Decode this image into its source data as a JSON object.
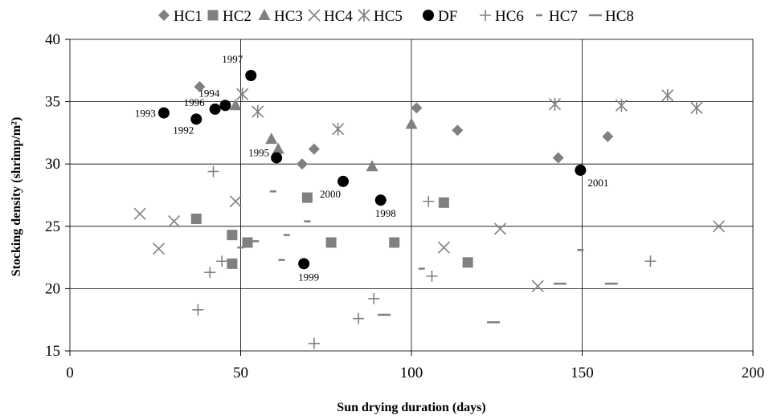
{
  "chart_data": {
    "type": "scatter",
    "xlabel": "Sun drying duration (days)",
    "ylabel": "Stocking density (shrimp/m²)",
    "xlim": [
      0,
      200
    ],
    "ylim": [
      15,
      40
    ],
    "x_ticks": [
      0,
      50,
      100,
      150,
      200
    ],
    "y_ticks": [
      15,
      20,
      25,
      30,
      35,
      40
    ],
    "grid": true,
    "grid_lines": "major gridlines at x=50,100,150 and y=20,25,30,35",
    "legend_position": "top",
    "series": [
      {
        "name": "HC1",
        "marker": "diamond",
        "color": "#808080",
        "points": [
          [
            38,
            36.2
          ],
          [
            68,
            30.0
          ],
          [
            71.5,
            31.2
          ],
          [
            101.5,
            34.5
          ],
          [
            113.5,
            32.7
          ],
          [
            143,
            30.5
          ],
          [
            157.5,
            32.2
          ]
        ]
      },
      {
        "name": "HC2",
        "marker": "square",
        "color": "#808080",
        "points": [
          [
            37,
            25.6
          ],
          [
            47.5,
            24.3
          ],
          [
            47.5,
            22.0
          ],
          [
            52,
            23.7
          ],
          [
            69.5,
            27.3
          ],
          [
            76.5,
            23.7
          ],
          [
            95,
            23.7
          ],
          [
            109.5,
            26.9
          ],
          [
            116.5,
            22.1
          ]
        ]
      },
      {
        "name": "HC3",
        "marker": "triangle",
        "color": "#808080",
        "points": [
          [
            48.5,
            34.7
          ],
          [
            59,
            32.0
          ],
          [
            61,
            31.2
          ],
          [
            88.5,
            29.8
          ],
          [
            100,
            33.2
          ]
        ]
      },
      {
        "name": "HC4",
        "marker": "x",
        "color": "#808080",
        "points": [
          [
            20.5,
            26.0
          ],
          [
            26,
            23.2
          ],
          [
            30.5,
            25.4
          ],
          [
            48.5,
            27.0
          ],
          [
            109.5,
            23.3
          ],
          [
            126,
            24.8
          ],
          [
            137,
            20.2
          ],
          [
            190,
            25.0
          ]
        ]
      },
      {
        "name": "HC5",
        "marker": "star",
        "color": "#808080",
        "points": [
          [
            50.5,
            35.6
          ],
          [
            55,
            34.2
          ],
          [
            78.5,
            32.8
          ],
          [
            142,
            34.8
          ],
          [
            161.5,
            34.7
          ],
          [
            175,
            35.5
          ],
          [
            183.5,
            34.5
          ]
        ]
      },
      {
        "name": "DF",
        "marker": "circle",
        "color": "#000000",
        "points": [
          [
            27.5,
            34.1
          ],
          [
            37,
            33.6
          ],
          [
            42.5,
            34.4
          ],
          [
            45.5,
            34.7
          ],
          [
            53,
            37.1
          ],
          [
            60.5,
            30.5
          ],
          [
            80,
            28.6
          ],
          [
            91,
            27.1
          ],
          [
            68.5,
            22.0
          ],
          [
            149.5,
            29.5
          ]
        ],
        "point_labels": [
          "1993",
          "1992",
          "1996",
          "1994",
          "1997",
          "1995",
          "2000",
          "1998",
          "1999",
          "2001"
        ]
      },
      {
        "name": "HC6",
        "marker": "plus",
        "color": "#808080",
        "points": [
          [
            37.5,
            18.3
          ],
          [
            41,
            21.3
          ],
          [
            42,
            29.4
          ],
          [
            44.5,
            22.2
          ],
          [
            71.5,
            15.6
          ],
          [
            84.5,
            17.6
          ],
          [
            89,
            19.2
          ],
          [
            105,
            27.0
          ],
          [
            106,
            21.0
          ],
          [
            170,
            22.2
          ]
        ]
      },
      {
        "name": "HC7",
        "marker": "short-dash",
        "color": "#808080",
        "points": [
          [
            50,
            23.3
          ],
          [
            59.5,
            27.8
          ],
          [
            62,
            22.3
          ],
          [
            63.5,
            24.3
          ],
          [
            69.5,
            25.4
          ],
          [
            103,
            21.6
          ],
          [
            149.5,
            23.1
          ]
        ]
      },
      {
        "name": "HC8",
        "marker": "long-dash",
        "color": "#808080",
        "points": [
          [
            53.5,
            23.8
          ],
          [
            92,
            17.9
          ],
          [
            124,
            17.3
          ],
          [
            143.5,
            20.4
          ],
          [
            158.5,
            20.4
          ]
        ]
      }
    ]
  }
}
